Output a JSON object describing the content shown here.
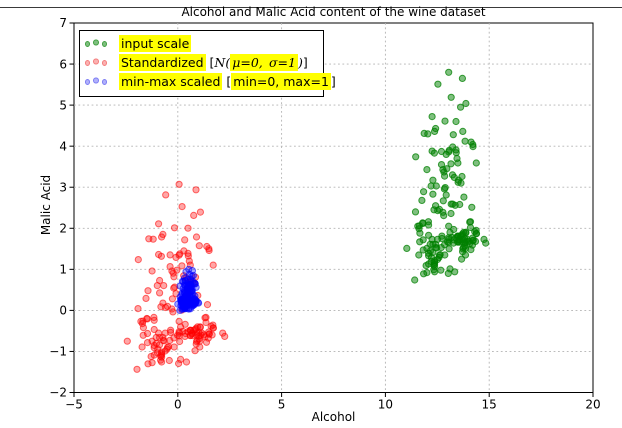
{
  "title": "Alcohol and Malic Acid content of the wine dataset",
  "axes": {
    "xlabel": "Alcohol",
    "ylabel": "Malic Acid",
    "xlim": [
      -5,
      20
    ],
    "ylim": [
      -2,
      7
    ],
    "xticks": [
      -5,
      0,
      5,
      10,
      15,
      20
    ],
    "yticks": [
      -2,
      -1,
      0,
      1,
      2,
      3,
      4,
      5,
      6,
      7
    ]
  },
  "colors": {
    "green": "#008000",
    "red": "#ff0000",
    "blue": "#0000ff",
    "highlight": "#ffff00",
    "grid": "#b3b3b3",
    "axis": "#000000"
  },
  "legend": {
    "entries": [
      {
        "key": "input-scale",
        "dot_fill": "#7fbf7f",
        "dot_edge": "#409f40",
        "segments": [
          {
            "text": "input scale",
            "hl": true,
            "math": false
          }
        ]
      },
      {
        "key": "standardized",
        "dot_fill": "#fbb1b1",
        "dot_edge": "#f47c7c",
        "segments": [
          {
            "text": "Standardized",
            "hl": true,
            "math": false
          },
          {
            "text": " [",
            "hl": false,
            "math": false
          },
          {
            "text": "N",
            "hl": false,
            "math": true
          },
          {
            "text": "(",
            "hl": false,
            "math": true
          },
          {
            "text": "μ=0, σ=1",
            "hl": true,
            "math": true
          },
          {
            "text": ")",
            "hl": false,
            "math": true
          },
          {
            "text": "]",
            "hl": false,
            "math": false
          }
        ]
      },
      {
        "key": "min-max-scaled",
        "dot_fill": "#b1b1fb",
        "dot_edge": "#7c7cf4",
        "segments": [
          {
            "text": "min-max scaled",
            "hl": true,
            "math": false
          },
          {
            "text": " [",
            "hl": false,
            "math": false
          },
          {
            "text": "min=0, max=1",
            "hl": true,
            "math": false
          },
          {
            "text": "]",
            "hl": false,
            "math": false
          }
        ]
      }
    ]
  },
  "chart_data": {
    "type": "scatter",
    "title": "Alcohol and Malic Acid content of the wine dataset",
    "xlabel": "Alcohol",
    "ylabel": "Malic Acid",
    "xlim": [
      -5,
      20
    ],
    "ylim": [
      -2,
      7
    ],
    "grid": true,
    "legend_position": "upper left",
    "n_points_per_series": 178,
    "series": [
      {
        "name": "input scale",
        "color": "#008000",
        "alpha": 0.5,
        "marker": "o",
        "points": [
          [
            14.23,
            1.71
          ],
          [
            13.2,
            1.78
          ],
          [
            13.16,
            2.36
          ],
          [
            14.37,
            1.95
          ],
          [
            13.24,
            2.59
          ],
          [
            14.2,
            1.76
          ],
          [
            14.39,
            1.87
          ],
          [
            14.06,
            2.15
          ],
          [
            14.83,
            1.64
          ],
          [
            13.86,
            1.35
          ],
          [
            14.1,
            2.16
          ],
          [
            14.12,
            1.48
          ],
          [
            13.75,
            1.73
          ],
          [
            14.75,
            1.73
          ],
          [
            14.38,
            1.87
          ],
          [
            13.63,
            1.81
          ],
          [
            14.3,
            1.92
          ],
          [
            13.83,
            1.57
          ],
          [
            14.19,
            1.59
          ],
          [
            13.64,
            3.1
          ],
          [
            14.06,
            1.63
          ],
          [
            12.93,
            3.8
          ],
          [
            13.71,
            1.86
          ],
          [
            12.85,
            1.6
          ],
          [
            13.5,
            1.81
          ],
          [
            13.05,
            2.05
          ],
          [
            13.39,
            1.77
          ],
          [
            13.3,
            1.72
          ],
          [
            13.87,
            1.9
          ],
          [
            14.02,
            1.68
          ],
          [
            13.73,
            1.5
          ],
          [
            13.58,
            1.66
          ],
          [
            13.68,
            1.83
          ],
          [
            13.76,
            1.53
          ],
          [
            13.51,
            1.8
          ],
          [
            13.48,
            1.81
          ],
          [
            13.28,
            1.64
          ],
          [
            13.05,
            1.65
          ],
          [
            13.07,
            1.5
          ],
          [
            14.22,
            3.99
          ],
          [
            13.56,
            1.71
          ],
          [
            13.41,
            3.84
          ],
          [
            13.88,
            1.89
          ],
          [
            13.24,
            3.98
          ],
          [
            13.05,
            1.77
          ],
          [
            14.21,
            4.04
          ],
          [
            14.38,
            3.59
          ],
          [
            13.9,
            1.68
          ],
          [
            14.1,
            2.02
          ],
          [
            13.94,
            1.73
          ],
          [
            13.05,
            1.73
          ],
          [
            13.83,
            1.65
          ],
          [
            13.82,
            1.75
          ],
          [
            13.77,
            1.9
          ],
          [
            13.74,
            1.67
          ],
          [
            13.56,
            1.73
          ],
          [
            14.22,
            1.7
          ],
          [
            13.29,
            1.97
          ],
          [
            13.72,
            1.43
          ],
          [
            12.37,
            0.94
          ],
          [
            12.33,
            1.1
          ],
          [
            12.64,
            1.36
          ],
          [
            13.67,
            1.25
          ],
          [
            12.37,
            1.13
          ],
          [
            12.17,
            1.45
          ],
          [
            12.37,
            1.21
          ],
          [
            13.11,
            1.01
          ],
          [
            12.37,
            1.17
          ],
          [
            13.34,
            0.94
          ],
          [
            12.21,
            1.19
          ],
          [
            12.29,
            1.61
          ],
          [
            13.86,
            1.51
          ],
          [
            13.49,
            1.66
          ],
          [
            12.99,
            1.67
          ],
          [
            11.96,
            1.09
          ],
          [
            11.66,
            1.88
          ],
          [
            13.03,
            0.9
          ],
          [
            11.84,
            2.89
          ],
          [
            12.33,
            0.99
          ],
          [
            12.7,
            3.87
          ],
          [
            12.0,
            0.92
          ],
          [
            12.72,
            1.81
          ],
          [
            12.08,
            1.13
          ],
          [
            13.05,
            3.86
          ],
          [
            11.84,
            0.89
          ],
          [
            12.67,
            0.98
          ],
          [
            12.16,
            1.61
          ],
          [
            11.65,
            1.67
          ],
          [
            11.64,
            2.06
          ],
          [
            12.08,
            1.33
          ],
          [
            12.08,
            1.83
          ],
          [
            12.0,
            1.51
          ],
          [
            12.69,
            1.53
          ],
          [
            12.29,
            2.83
          ],
          [
            11.62,
            1.99
          ],
          [
            12.47,
            1.52
          ],
          [
            11.81,
            2.12
          ],
          [
            12.29,
            1.41
          ],
          [
            12.37,
            1.07
          ],
          [
            12.29,
            3.17
          ],
          [
            12.08,
            2.08
          ],
          [
            12.6,
            1.34
          ],
          [
            12.34,
            2.45
          ],
          [
            11.82,
            1.72
          ],
          [
            12.51,
            1.73
          ],
          [
            12.42,
            2.55
          ],
          [
            12.25,
            1.73
          ],
          [
            12.72,
            1.75
          ],
          [
            12.22,
            1.29
          ],
          [
            11.61,
            1.35
          ],
          [
            11.46,
            3.74
          ],
          [
            12.52,
            2.43
          ],
          [
            11.76,
            2.68
          ],
          [
            11.41,
            0.74
          ],
          [
            12.08,
            1.39
          ],
          [
            11.03,
            1.51
          ],
          [
            11.82,
            1.47
          ],
          [
            12.42,
            1.61
          ],
          [
            12.77,
            3.43
          ],
          [
            12.0,
            3.43
          ],
          [
            11.45,
            2.4
          ],
          [
            11.56,
            2.05
          ],
          [
            12.42,
            4.43
          ],
          [
            13.05,
            5.8
          ],
          [
            11.87,
            4.31
          ],
          [
            12.07,
            2.16
          ],
          [
            12.43,
            1.53
          ],
          [
            11.79,
            2.13
          ],
          [
            12.37,
            4.36
          ],
          [
            12.04,
            4.3
          ],
          [
            12.86,
            1.35
          ],
          [
            12.88,
            2.99
          ],
          [
            12.81,
            2.31
          ],
          [
            12.7,
            3.55
          ],
          [
            12.51,
            1.24
          ],
          [
            12.6,
            2.46
          ],
          [
            12.25,
            4.72
          ],
          [
            12.53,
            5.51
          ],
          [
            13.49,
            3.59
          ],
          [
            12.84,
            2.96
          ],
          [
            12.93,
            2.81
          ],
          [
            13.36,
            2.56
          ],
          [
            13.52,
            3.17
          ],
          [
            13.62,
            4.95
          ],
          [
            12.25,
            3.88
          ],
          [
            13.16,
            3.57
          ],
          [
            13.88,
            5.04
          ],
          [
            12.87,
            4.61
          ],
          [
            13.32,
            3.24
          ],
          [
            13.08,
            3.9
          ],
          [
            13.5,
            3.12
          ],
          [
            12.79,
            2.67
          ],
          [
            13.11,
            1.9
          ],
          [
            13.23,
            3.3
          ],
          [
            12.58,
            1.29
          ],
          [
            13.17,
            5.19
          ],
          [
            13.84,
            4.12
          ],
          [
            12.45,
            3.03
          ],
          [
            14.34,
            1.68
          ],
          [
            13.48,
            1.67
          ],
          [
            12.36,
            3.83
          ],
          [
            13.69,
            3.26
          ],
          [
            12.85,
            3.27
          ],
          [
            12.96,
            3.45
          ],
          [
            13.78,
            2.76
          ],
          [
            13.73,
            4.36
          ],
          [
            13.45,
            3.7
          ],
          [
            12.82,
            3.37
          ],
          [
            13.58,
            2.58
          ],
          [
            13.4,
            4.6
          ],
          [
            12.2,
            3.03
          ],
          [
            12.77,
            2.39
          ],
          [
            14.16,
            2.51
          ],
          [
            13.71,
            5.65
          ],
          [
            13.4,
            3.91
          ],
          [
            13.27,
            4.28
          ],
          [
            13.17,
            2.59
          ],
          [
            14.13,
            4.1
          ]
        ]
      },
      {
        "name": "Standardized [N(μ=0, σ=1)]",
        "color": "#ff0000",
        "alpha": 0.35,
        "marker": "o",
        "derived_from": "input scale",
        "transform": "standardize (z-score: subtract mean, divide by std)"
      },
      {
        "name": "min-max scaled [min=0, max=1]",
        "color": "#0000ff",
        "alpha": 0.35,
        "marker": "o",
        "derived_from": "input scale",
        "transform": "min-max scaling to [0,1]"
      }
    ]
  }
}
